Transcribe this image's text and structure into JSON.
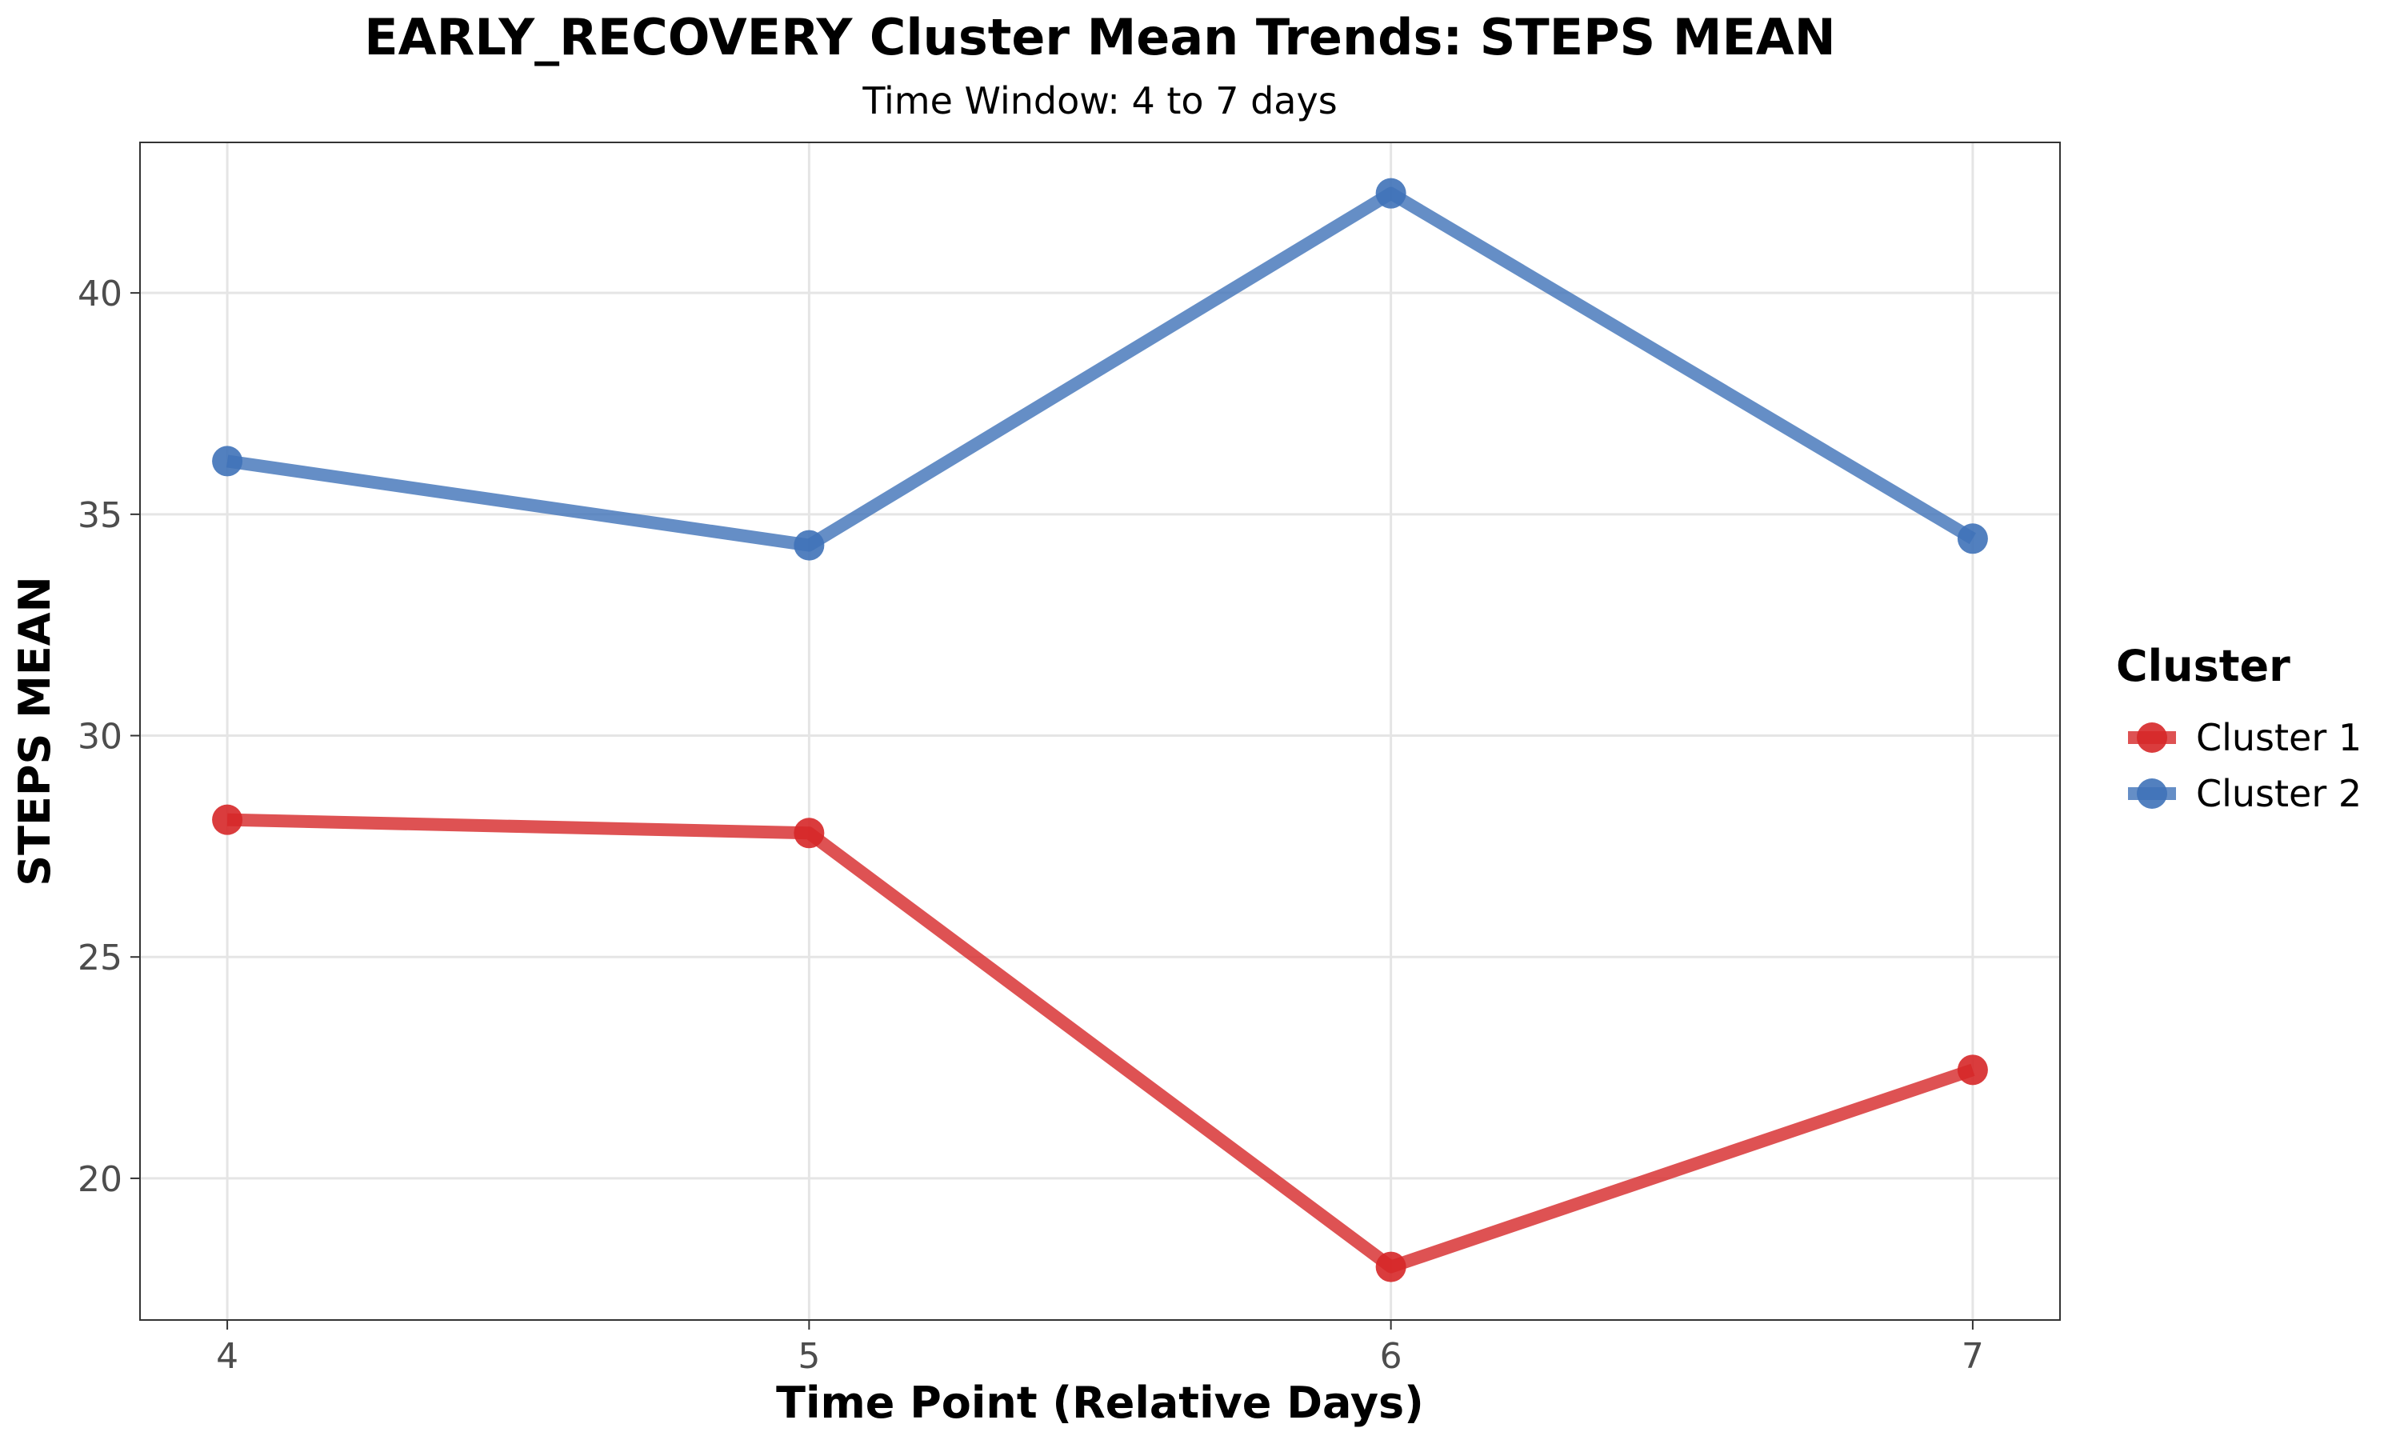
{
  "chart_data": {
    "type": "line",
    "title": "EARLY_RECOVERY Cluster Mean Trends: STEPS MEAN",
    "subtitle": "Time Window: 4 to 7 days",
    "xlabel": "Time Point (Relative Days)",
    "ylabel": "STEPS MEAN",
    "x": [
      4,
      5,
      6,
      7
    ],
    "x_ticks": [
      "4",
      "5",
      "6",
      "7"
    ],
    "xlim": [
      3.85,
      7.15
    ],
    "y_ticks": [
      20,
      25,
      30,
      35,
      40
    ],
    "ylim": [
      16.8,
      43.4
    ],
    "grid": true,
    "legend": {
      "title": "Cluster",
      "placement": "right"
    },
    "series": [
      {
        "name": "Cluster 1",
        "color": "#d62728",
        "values": [
          28.1,
          27.8,
          18.0,
          22.45
        ]
      },
      {
        "name": "Cluster 2",
        "color": "#3f72b8",
        "values": [
          36.2,
          34.3,
          42.25,
          34.45
        ]
      }
    ]
  }
}
